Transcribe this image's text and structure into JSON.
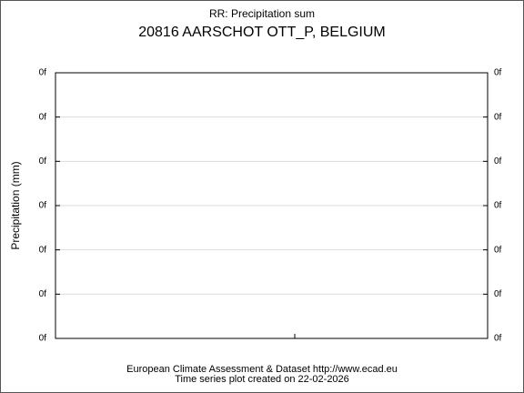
{
  "header": {
    "subtitle": "RR: Precipitation sum",
    "title": "20816 AARSCHOT OTT_P, BELGIUM"
  },
  "axis": {
    "y_label": "Precipitation (mm)",
    "left_ticks": [
      "0f",
      "0f",
      "0f",
      "0f",
      "0f",
      "0f",
      "0f"
    ],
    "right_ticks": [
      "0f",
      "0f",
      "0f",
      "0f",
      "0f",
      "0f",
      "0f"
    ]
  },
  "footer": {
    "line1": "European Climate Assessment & Dataset  http://www.ecad.eu",
    "line2": "Time series plot created on 22-02-2026"
  }
}
